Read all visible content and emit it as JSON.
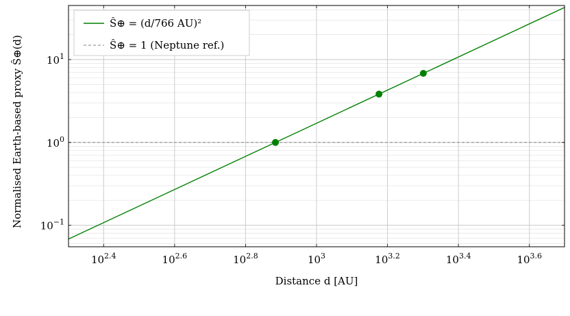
{
  "chart_data": {
    "type": "line",
    "title": "",
    "xlabel": "Distance d [AU]",
    "ylabel": "Normalised Earth-based proxy Ŝ⊕(d)",
    "x_scale": "log",
    "y_scale": "log",
    "xlim": [
      200,
      5000
    ],
    "ylim": [
      0.055,
      45
    ],
    "x_ticks": [
      {
        "value": 251.19,
        "base": "10",
        "exp": "2.4"
      },
      {
        "value": 398.11,
        "base": "10",
        "exp": "2.6"
      },
      {
        "value": 630.96,
        "base": "10",
        "exp": "2.8"
      },
      {
        "value": 1000,
        "base": "10",
        "exp": "3"
      },
      {
        "value": 1584.9,
        "base": "10",
        "exp": "3.2"
      },
      {
        "value": 2511.9,
        "base": "10",
        "exp": "3.4"
      },
      {
        "value": 3981.1,
        "base": "10",
        "exp": "3.6"
      }
    ],
    "y_ticks": [
      {
        "value": 0.1,
        "base": "10",
        "exp": "−1"
      },
      {
        "value": 1,
        "base": "10",
        "exp": "0"
      },
      {
        "value": 10,
        "base": "10",
        "exp": "1"
      }
    ],
    "grid": true,
    "legend_position": "top-left",
    "series": [
      {
        "name": "Ŝ⊕ = (d/766 AU)²",
        "color": "#008000",
        "x": [
          200,
          5000
        ],
        "y": [
          0.0682,
          42.6
        ],
        "style": "solid"
      },
      {
        "name": "Ŝ⊕ = 1 (Neptune ref.)",
        "color": "#999999",
        "x": [
          200,
          5000
        ],
        "y": [
          1,
          1
        ],
        "style": "dashed"
      }
    ],
    "points": {
      "color": "#008000",
      "x": [
        766,
        1500,
        2000
      ],
      "y": [
        1.0,
        3.83,
        6.82
      ]
    }
  }
}
